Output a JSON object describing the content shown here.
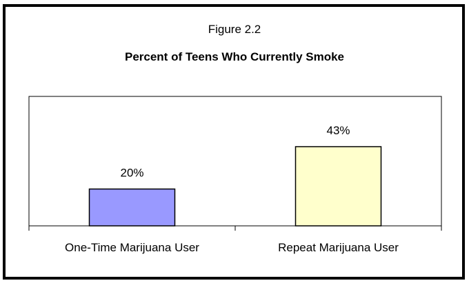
{
  "figure_label": "Figure 2.2",
  "chart_data": {
    "type": "bar",
    "title": "Percent of Teens Who Currently Smoke",
    "categories": [
      "One-Time Marijuana User",
      "Repeat Marijuana User"
    ],
    "values": [
      20,
      43
    ],
    "data_labels": [
      "20%",
      "43%"
    ],
    "bar_colors": [
      "#9999ff",
      "#ffffcc"
    ],
    "xlabel": "",
    "ylabel": "",
    "ylim": [
      0,
      60
    ],
    "grid": false,
    "legend": "none"
  }
}
